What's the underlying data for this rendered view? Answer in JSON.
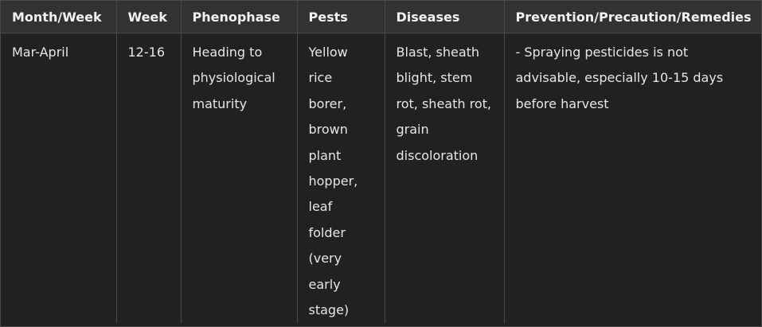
{
  "table": {
    "headers": [
      "Month/Week",
      "Week",
      "Phenophase",
      "Pests",
      "Diseases",
      "Prevention/Precaution/Remedies"
    ],
    "rows": [
      {
        "month": "Mar-April",
        "week": "12-16",
        "phenophase": "Heading to physiological maturity",
        "pests": "Yellow rice borer, brown plant hopper, leaf folder (very early stage)",
        "diseases": "Blast, sheath blight, stem rot, sheath rot, grain discoloration",
        "remedies": "- Spraying pesticides is not advisable, especially 10-15 days before harvest"
      }
    ]
  },
  "colors": {
    "background": "#212121",
    "header_background": "#323232",
    "border": "#4a4a4a",
    "text": "#e6e6e6"
  }
}
